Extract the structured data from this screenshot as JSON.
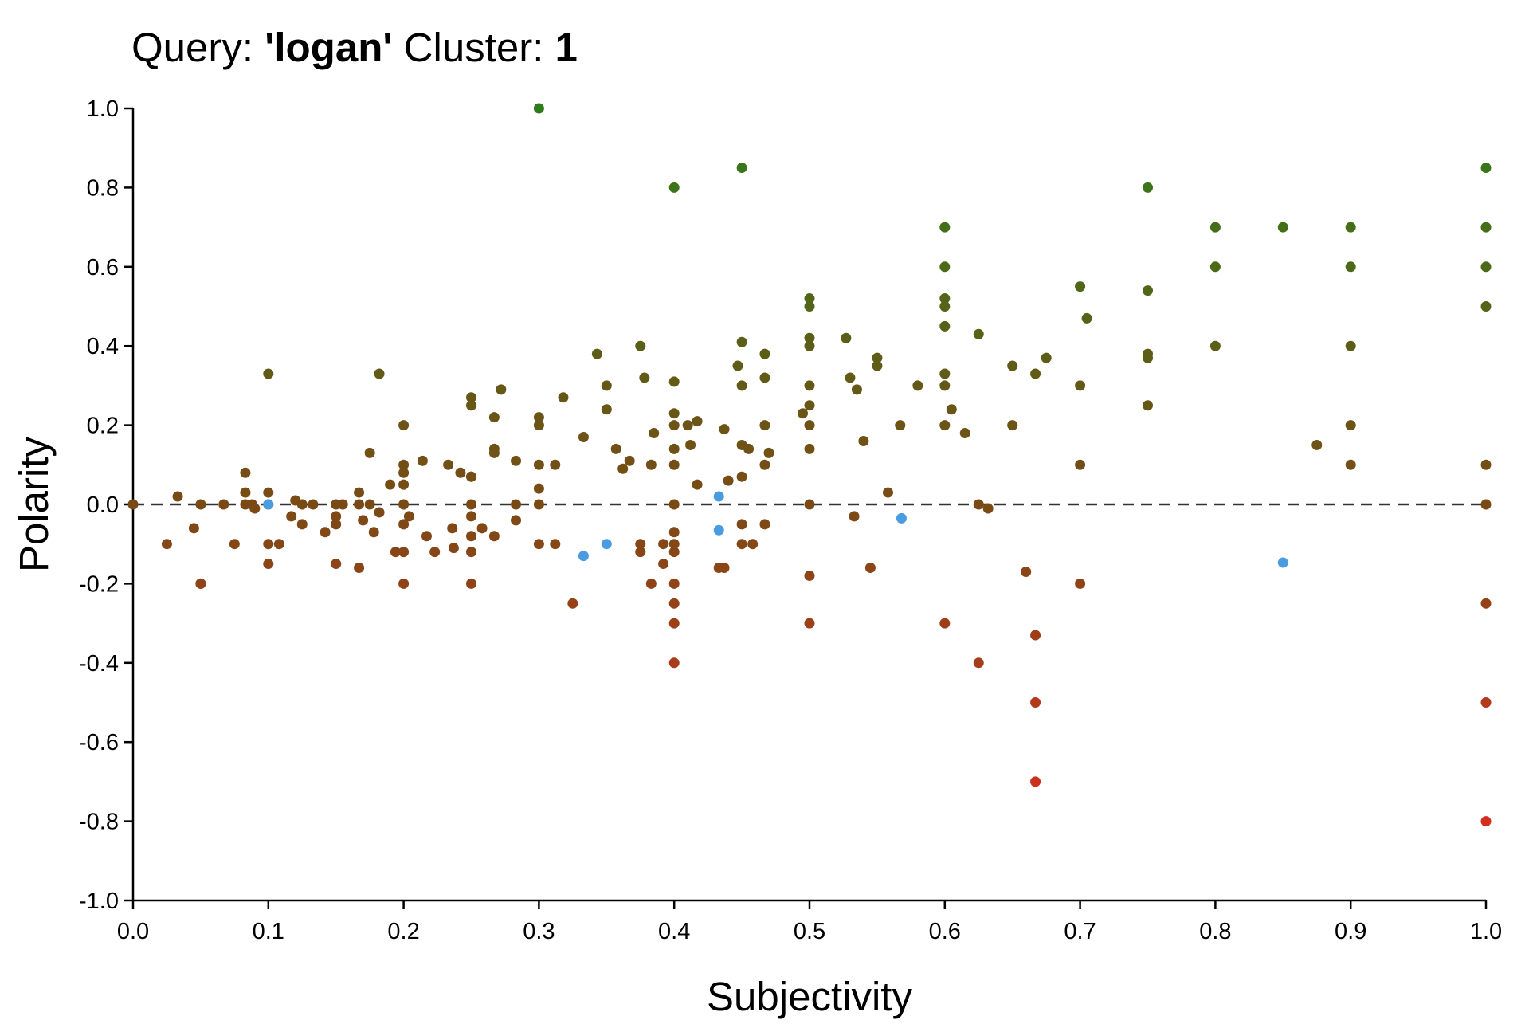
{
  "title": {
    "query_prefix": "Query: ",
    "query_value": "'logan'",
    "cluster_prefix": " Cluster: ",
    "cluster_value": "1"
  },
  "chart_data": {
    "type": "scatter",
    "xlabel": "Subjectivity",
    "ylabel": "Polarity",
    "xlim": [
      0,
      1
    ],
    "ylim": [
      -1,
      1
    ],
    "x_ticks": [
      "0.0",
      "0.1",
      "0.2",
      "0.3",
      "0.4",
      "0.5",
      "0.6",
      "0.7",
      "0.8",
      "0.9",
      "1.0"
    ],
    "y_ticks": [
      "1.0",
      "0.8",
      "0.6",
      "0.4",
      "0.2",
      "0.0",
      "-0.2",
      "-0.4",
      "-0.6",
      "-0.8",
      "-1.0"
    ],
    "reference_line": {
      "y": 0,
      "style": "dashed"
    },
    "grid": false,
    "colors": {
      "positive": "#2e7d1a",
      "neutral": "#7a4a15",
      "negative": "#d32f1f",
      "highlight": "#4a9be0"
    },
    "points": [
      [
        0.3,
        1.0
      ],
      [
        0.4,
        0.8
      ],
      [
        0.45,
        0.85
      ],
      [
        0.75,
        0.8
      ],
      [
        1.0,
        0.85
      ],
      [
        1.0,
        0.7
      ],
      [
        1.0,
        0.6
      ],
      [
        1.0,
        0.5
      ],
      [
        0.6,
        0.7
      ],
      [
        0.6,
        0.6
      ],
      [
        0.6,
        0.52
      ],
      [
        0.6,
        0.5
      ],
      [
        0.6,
        0.45
      ],
      [
        0.6,
        0.33
      ],
      [
        0.6,
        0.3
      ],
      [
        0.6,
        0.2
      ],
      [
        0.8,
        0.7
      ],
      [
        0.8,
        0.6
      ],
      [
        0.8,
        0.4
      ],
      [
        0.85,
        0.7
      ],
      [
        0.9,
        0.7
      ],
      [
        0.9,
        0.6
      ],
      [
        0.9,
        0.4
      ],
      [
        0.9,
        0.2
      ],
      [
        0.9,
        0.1
      ],
      [
        0.7,
        0.55
      ],
      [
        0.705,
        0.47
      ],
      [
        0.7,
        0.3
      ],
      [
        0.7,
        0.1
      ],
      [
        0.7,
        -0.2
      ],
      [
        0.75,
        0.54
      ],
      [
        0.75,
        0.38
      ],
      [
        0.75,
        0.37
      ],
      [
        0.75,
        0.25
      ],
      [
        0.875,
        0.15
      ],
      [
        0.5,
        0.52
      ],
      [
        0.5,
        0.5
      ],
      [
        0.5,
        0.42
      ],
      [
        0.5,
        0.4
      ],
      [
        0.5,
        0.3
      ],
      [
        0.5,
        0.25
      ],
      [
        0.5,
        0.2
      ],
      [
        0.5,
        0.14
      ],
      [
        0.5,
        0.0
      ],
      [
        0.5,
        -0.18
      ],
      [
        0.5,
        -0.3
      ],
      [
        0.527,
        0.42
      ],
      [
        0.53,
        0.32
      ],
      [
        0.535,
        0.29
      ],
      [
        0.54,
        0.16
      ],
      [
        0.55,
        0.37
      ],
      [
        0.55,
        0.35
      ],
      [
        0.567,
        0.2
      ],
      [
        0.58,
        0.3
      ],
      [
        0.605,
        0.24
      ],
      [
        0.615,
        0.18
      ],
      [
        0.625,
        0.43
      ],
      [
        0.65,
        0.35
      ],
      [
        0.65,
        0.2
      ],
      [
        0.667,
        0.33
      ],
      [
        0.675,
        0.37
      ],
      [
        0.495,
        0.23
      ],
      [
        0.1,
        0.33
      ],
      [
        0.182,
        0.33
      ],
      [
        0.2,
        0.2
      ],
      [
        0.2,
        0.1
      ],
      [
        0.2,
        0.08
      ],
      [
        0.2,
        0.05
      ],
      [
        0.2,
        0.0
      ],
      [
        0.2,
        -0.05
      ],
      [
        0.2,
        -0.12
      ],
      [
        0.2,
        -0.2
      ],
      [
        0.25,
        0.27
      ],
      [
        0.25,
        0.25
      ],
      [
        0.25,
        0.07
      ],
      [
        0.25,
        0.0
      ],
      [
        0.25,
        -0.08
      ],
      [
        0.25,
        -0.12
      ],
      [
        0.25,
        -0.2
      ],
      [
        0.267,
        0.22
      ],
      [
        0.267,
        0.14
      ],
      [
        0.267,
        0.13
      ],
      [
        0.272,
        0.29
      ],
      [
        0.283,
        0.11
      ],
      [
        0.283,
        0.0
      ],
      [
        0.283,
        -0.04
      ],
      [
        0.267,
        -0.08
      ],
      [
        0.3,
        0.22
      ],
      [
        0.3,
        0.2
      ],
      [
        0.3,
        0.1
      ],
      [
        0.3,
        0.04
      ],
      [
        0.3,
        0.0
      ],
      [
        0.3,
        -0.1
      ],
      [
        0.312,
        0.1
      ],
      [
        0.312,
        -0.1
      ],
      [
        0.318,
        0.27
      ],
      [
        0.325,
        -0.25
      ],
      [
        0.333,
        0.17
      ],
      [
        0.343,
        0.38
      ],
      [
        0.35,
        0.3
      ],
      [
        0.35,
        0.24
      ],
      [
        0.357,
        0.14
      ],
      [
        0.362,
        0.09
      ],
      [
        0.367,
        0.11
      ],
      [
        0.375,
        0.4
      ],
      [
        0.378,
        0.32
      ],
      [
        0.383,
        0.1
      ],
      [
        0.385,
        0.18
      ],
      [
        0.375,
        -0.1
      ],
      [
        0.375,
        -0.12
      ],
      [
        0.383,
        -0.2
      ],
      [
        0.392,
        -0.1
      ],
      [
        0.392,
        -0.15
      ],
      [
        0.4,
        0.31
      ],
      [
        0.4,
        0.23
      ],
      [
        0.4,
        0.2
      ],
      [
        0.4,
        0.14
      ],
      [
        0.4,
        0.1
      ],
      [
        0.4,
        0.0
      ],
      [
        0.4,
        -0.07
      ],
      [
        0.4,
        -0.1
      ],
      [
        0.4,
        -0.12
      ],
      [
        0.4,
        -0.2
      ],
      [
        0.4,
        -0.25
      ],
      [
        0.4,
        -0.3
      ],
      [
        0.4,
        -0.4
      ],
      [
        0.41,
        0.2
      ],
      [
        0.412,
        0.15
      ],
      [
        0.417,
        0.21
      ],
      [
        0.417,
        0.05
      ],
      [
        0.433,
        -0.16
      ],
      [
        0.437,
        -0.16
      ],
      [
        0.437,
        0.19
      ],
      [
        0.44,
        0.06
      ],
      [
        0.447,
        0.35
      ],
      [
        0.45,
        0.41
      ],
      [
        0.45,
        0.3
      ],
      [
        0.45,
        0.15
      ],
      [
        0.45,
        0.07
      ],
      [
        0.45,
        -0.05
      ],
      [
        0.45,
        -0.1
      ],
      [
        0.455,
        0.14
      ],
      [
        0.458,
        -0.1
      ],
      [
        0.467,
        0.38
      ],
      [
        0.467,
        0.32
      ],
      [
        0.467,
        0.2
      ],
      [
        0.467,
        0.1
      ],
      [
        0.467,
        -0.05
      ],
      [
        0.47,
        0.13
      ],
      [
        0.558,
        0.03
      ],
      [
        0.533,
        -0.03
      ],
      [
        0.545,
        -0.16
      ],
      [
        0.6,
        -0.3
      ],
      [
        0.625,
        0.0
      ],
      [
        0.632,
        -0.01
      ],
      [
        0.625,
        -0.4
      ],
      [
        0.66,
        -0.17
      ],
      [
        0.667,
        -0.33
      ],
      [
        0.667,
        -0.5
      ],
      [
        0.667,
        -0.7
      ],
      [
        1.0,
        0.1
      ],
      [
        1.0,
        0.0
      ],
      [
        1.0,
        -0.25
      ],
      [
        1.0,
        -0.5
      ],
      [
        1.0,
        -0.8
      ],
      [
        0.0,
        0.0
      ],
      [
        0.025,
        -0.1
      ],
      [
        0.033,
        0.02
      ],
      [
        0.045,
        -0.06
      ],
      [
        0.05,
        0.0
      ],
      [
        0.05,
        -0.2
      ],
      [
        0.05,
        -0.2
      ],
      [
        0.067,
        0.0
      ],
      [
        0.075,
        -0.1
      ],
      [
        0.083,
        0.08
      ],
      [
        0.083,
        0.03
      ],
      [
        0.083,
        0.0
      ],
      [
        0.088,
        0.0
      ],
      [
        0.09,
        -0.01
      ],
      [
        0.1,
        0.03
      ],
      [
        0.1,
        0.0
      ],
      [
        0.1,
        -0.1
      ],
      [
        0.1,
        -0.15
      ],
      [
        0.108,
        -0.1
      ],
      [
        0.117,
        -0.03
      ],
      [
        0.12,
        0.01
      ],
      [
        0.125,
        0.0
      ],
      [
        0.125,
        -0.05
      ],
      [
        0.133,
        0.0
      ],
      [
        0.142,
        -0.07
      ],
      [
        0.15,
        0.0
      ],
      [
        0.15,
        -0.03
      ],
      [
        0.15,
        -0.05
      ],
      [
        0.15,
        -0.15
      ],
      [
        0.155,
        0.0
      ],
      [
        0.167,
        0.03
      ],
      [
        0.167,
        0.0
      ],
      [
        0.167,
        -0.16
      ],
      [
        0.17,
        -0.04
      ],
      [
        0.175,
        0.13
      ],
      [
        0.175,
        0.0
      ],
      [
        0.178,
        -0.07
      ],
      [
        0.182,
        -0.02
      ],
      [
        0.19,
        0.05
      ],
      [
        0.194,
        -0.12
      ],
      [
        0.204,
        -0.03
      ],
      [
        0.214,
        0.11
      ],
      [
        0.217,
        -0.08
      ],
      [
        0.223,
        -0.12
      ],
      [
        0.233,
        0.1
      ],
      [
        0.236,
        -0.06
      ],
      [
        0.237,
        -0.11
      ],
      [
        0.242,
        0.08
      ],
      [
        0.25,
        0.07
      ],
      [
        0.25,
        -0.03
      ],
      [
        0.258,
        -0.06
      ]
    ],
    "highlight_points": [
      [
        0.1,
        0.0
      ],
      [
        0.333,
        -0.13
      ],
      [
        0.35,
        -0.1
      ],
      [
        0.433,
        0.02
      ],
      [
        0.433,
        -0.065
      ],
      [
        0.568,
        -0.035
      ],
      [
        0.85,
        -0.147
      ]
    ]
  }
}
